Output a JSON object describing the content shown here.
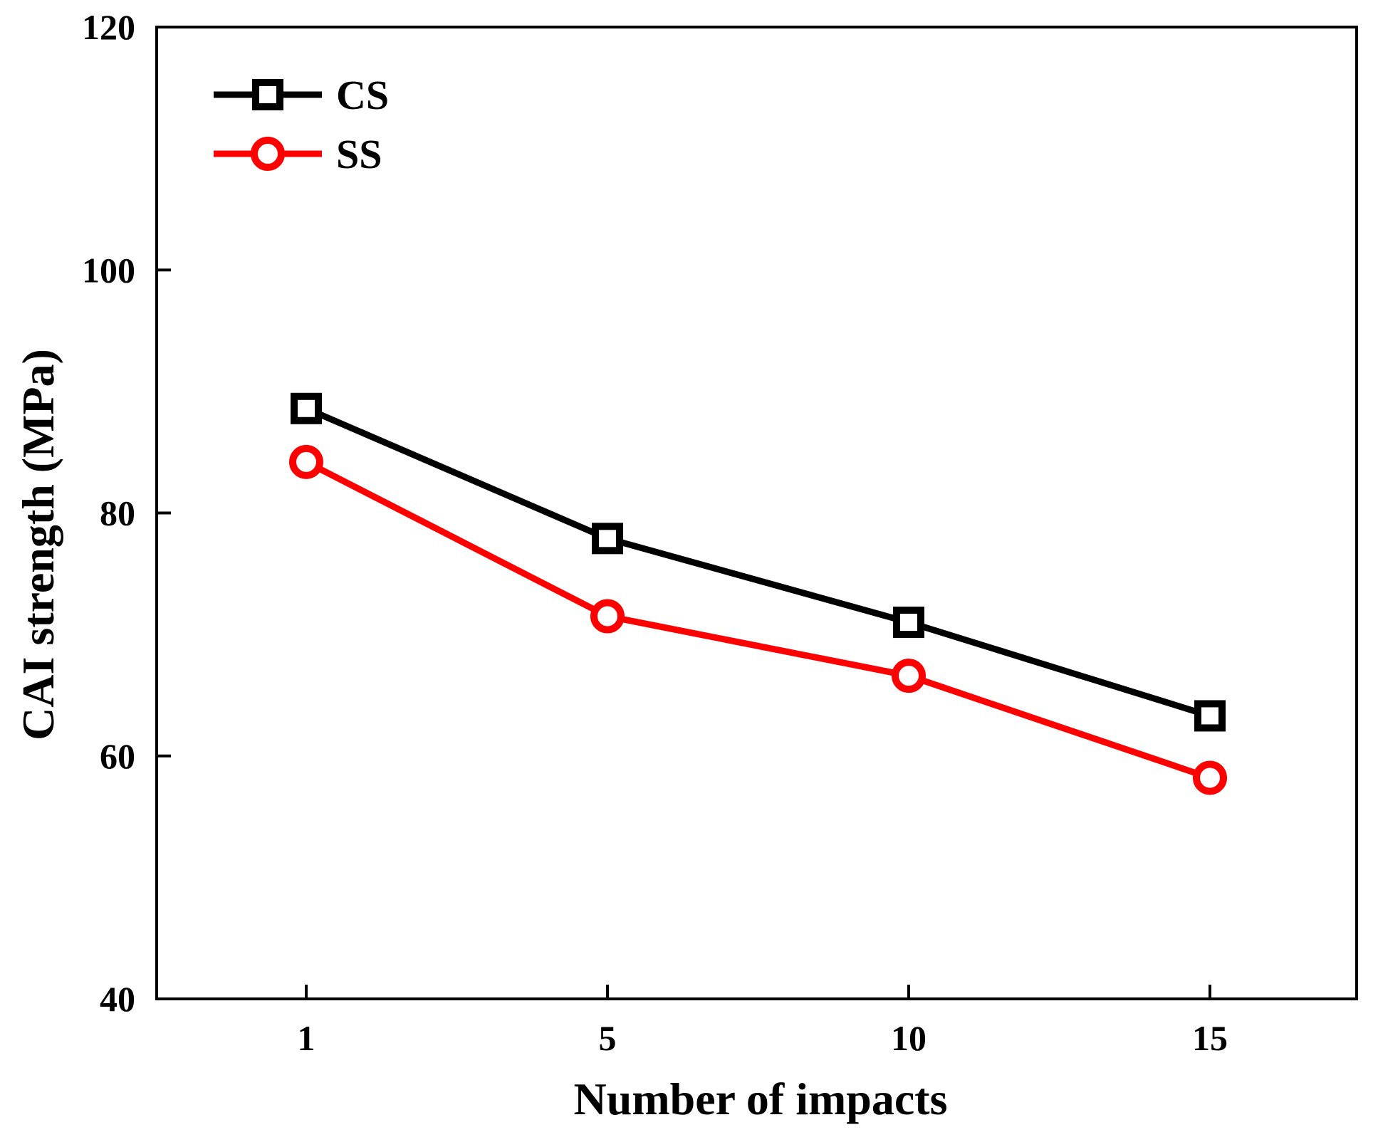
{
  "chart_data": {
    "type": "line",
    "title": "",
    "xlabel": "Number of impacts",
    "ylabel": "CAI strength (MPa)",
    "categories": [
      "1",
      "5",
      "10",
      "15"
    ],
    "ylim": [
      40,
      120
    ],
    "yticks": [
      40,
      60,
      80,
      100,
      120
    ],
    "grid": false,
    "legend_position": "top-left",
    "series": [
      {
        "name": "CS",
        "marker": "square",
        "color": "#000000",
        "values": [
          88.6,
          77.9,
          71.0,
          63.3
        ]
      },
      {
        "name": "SS",
        "marker": "circle",
        "color": "#ff0000",
        "values": [
          84.2,
          71.5,
          66.6,
          58.2
        ]
      }
    ]
  }
}
